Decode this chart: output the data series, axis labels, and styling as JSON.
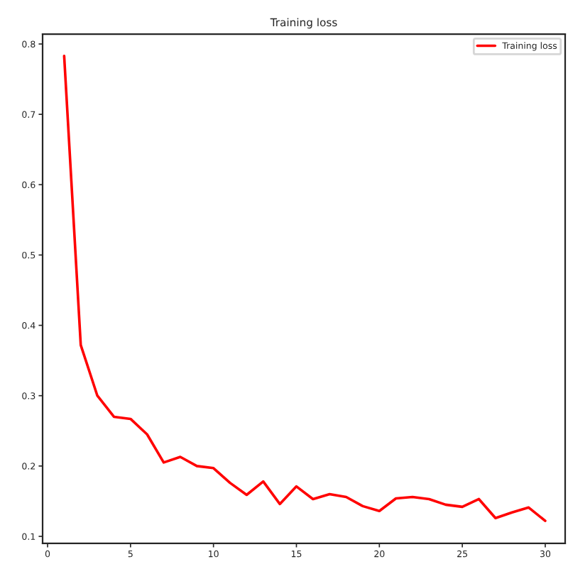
{
  "chart_data": {
    "type": "line",
    "title": "Training loss",
    "x": [
      1,
      2,
      3,
      4,
      5,
      6,
      7,
      8,
      9,
      10,
      11,
      12,
      13,
      14,
      15,
      16,
      17,
      18,
      19,
      20,
      21,
      22,
      23,
      24,
      25,
      26,
      27,
      28,
      29,
      30
    ],
    "series": [
      {
        "name": "Training loss",
        "color": "#ff0000",
        "values": [
          0.783,
          0.372,
          0.3,
          0.27,
          0.267,
          0.245,
          0.205,
          0.213,
          0.2,
          0.197,
          0.176,
          0.159,
          0.178,
          0.146,
          0.171,
          0.153,
          0.16,
          0.156,
          0.143,
          0.136,
          0.154,
          0.156,
          0.153,
          0.145,
          0.142,
          0.153,
          0.126,
          0.134,
          0.141,
          0.122
        ]
      }
    ],
    "xlim": [
      -0.3,
      31.2
    ],
    "xticks": [
      0,
      5,
      10,
      15,
      20,
      25,
      30
    ],
    "ylim": [
      0.09,
      0.814
    ],
    "yticks": [
      0.1,
      0.2,
      0.3,
      0.4,
      0.5,
      0.6,
      0.7,
      0.8
    ],
    "legend": "top right",
    "grid": false
  }
}
